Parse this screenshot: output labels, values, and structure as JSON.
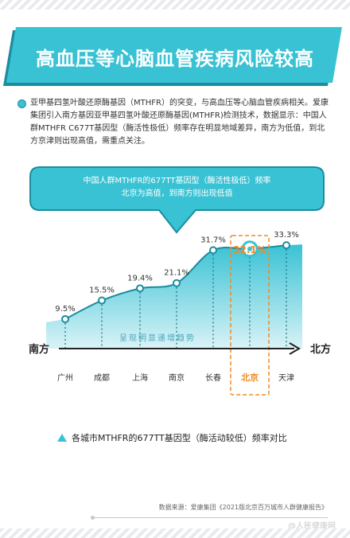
{
  "title": "高血压等心脑血管疾病风险较高",
  "intro": "亚甲基四氢叶酸还原酶基因（MTHFR）的突变，与高血压等心脑血管疾病相关。爱康集团引入南方基因亚甲基四氢叶酸还原酶基因(MTHFR)检测技术，数据显示：中国人群MTHFR C677T基因型（酶活性极低）频率存在明显地域差异，南方为低值，到北方京津则出现高值，需重点关注。",
  "callout": {
    "line1": "中国人群MTHFR的677TT基因型（酶活性极低）频率",
    "line2": "北京为高值，到南方则出现低值"
  },
  "colors": {
    "accent": "#39c2d4",
    "accent_dark": "#1a8da0",
    "highlight": "#f08a24"
  },
  "chart_data": {
    "type": "area",
    "categories": [
      "广州",
      "成都",
      "上海",
      "南京",
      "长春",
      "北京",
      "天津"
    ],
    "values": [
      9.5,
      15.5,
      19.4,
      21.1,
      31.7,
      32.1,
      33.3
    ],
    "value_labels": [
      "9.5%",
      "15.5%",
      "19.4%",
      "21.1%",
      "31.7%",
      "32.1%",
      "33.3%"
    ],
    "highlight_index": 5,
    "x_left_label": "南方",
    "x_right_label": "北方",
    "trend_label": "呈现明显递增趋势",
    "legend_title": "各城市MTHFR的677TT基因型（酶活动较低）频率对比",
    "ylim": [
      0,
      40
    ],
    "grid": false
  },
  "source": "数据来源：爱康集团《2021版北京百万城市人群健康报告》",
  "watermark": "@人民健康网"
}
